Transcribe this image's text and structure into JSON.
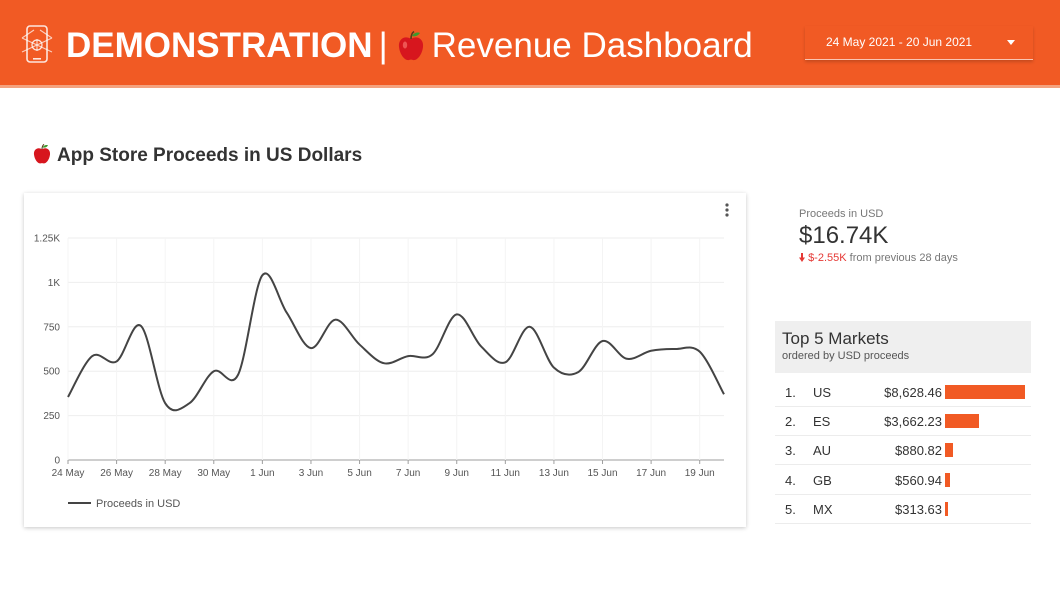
{
  "header": {
    "title_strong": "DEMONSTRATION",
    "separator": "|",
    "title_rest": "Revenue Dashboard",
    "date_range": "24 May 2021 - 20 Jun 2021",
    "background_color": "#f15a24"
  },
  "section": {
    "title": "App Store Proceeds in US Dollars"
  },
  "chart_data": {
    "type": "line",
    "x": [
      "24 May",
      "25 May",
      "26 May",
      "27 May",
      "28 May",
      "29 May",
      "30 May",
      "31 May",
      "1 Jun",
      "2 Jun",
      "3 Jun",
      "4 Jun",
      "5 Jun",
      "6 Jun",
      "7 Jun",
      "8 Jun",
      "9 Jun",
      "10 Jun",
      "11 Jun",
      "12 Jun",
      "13 Jun",
      "14 Jun",
      "15 Jun",
      "16 Jun",
      "17 Jun",
      "18 Jun",
      "19 Jun",
      "20 Jun"
    ],
    "x_tick_labels": [
      "24 May",
      "26 May",
      "28 May",
      "30 May",
      "1 Jun",
      "3 Jun",
      "5 Jun",
      "7 Jun",
      "9 Jun",
      "11 Jun",
      "13 Jun",
      "15 Jun",
      "17 Jun",
      "19 Jun"
    ],
    "series": [
      {
        "name": "Proceeds in USD",
        "color": "#444444",
        "values": [
          355,
          585,
          555,
          755,
          320,
          320,
          500,
          480,
          1040,
          830,
          630,
          790,
          650,
          545,
          585,
          595,
          820,
          640,
          550,
          750,
          520,
          495,
          670,
          570,
          615,
          625,
          610,
          370
        ]
      }
    ],
    "y_ticks": [
      0,
      250,
      500,
      750,
      1000,
      1250
    ],
    "y_tick_labels": [
      "0",
      "250",
      "500",
      "750",
      "1K",
      "1.25K"
    ],
    "ylim": [
      0,
      1250
    ],
    "grid": true,
    "legend_position": "bottom-left"
  },
  "kpi": {
    "label": "Proceeds in USD",
    "value": "$16.74K",
    "delta": "$-2.55K",
    "delta_suffix": "from previous 28 days",
    "delta_color": "#e53935"
  },
  "markets": {
    "title": "Top 5 Markets",
    "subtitle": "ordered by USD proceeds",
    "bar_color": "#f15a24",
    "rows": [
      {
        "rank": "1.",
        "country": "US",
        "amount": "$8,628.46",
        "value": 8628.46
      },
      {
        "rank": "2.",
        "country": "ES",
        "amount": "$3,662.23",
        "value": 3662.23
      },
      {
        "rank": "3.",
        "country": "AU",
        "amount": "$880.82",
        "value": 880.82
      },
      {
        "rank": "4.",
        "country": "GB",
        "amount": "$560.94",
        "value": 560.94
      },
      {
        "rank": "5.",
        "country": "MX",
        "amount": "$313.63",
        "value": 313.63
      }
    ]
  },
  "icons": {
    "logo": "phone-dollar-icon",
    "apple": "apple-icon",
    "chevron": "chevron-down-icon",
    "menu": "more-vertical-icon",
    "down_arrow": "down-arrow-icon"
  }
}
